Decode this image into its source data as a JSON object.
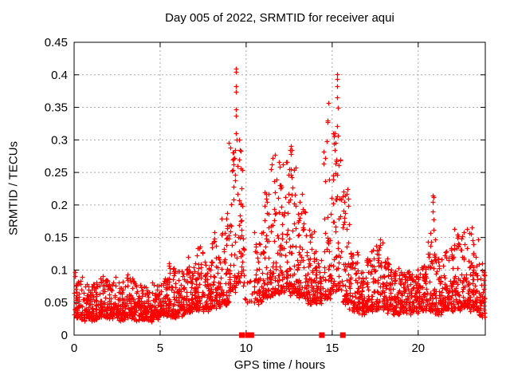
{
  "chart_data": {
    "type": "scatter",
    "title": "Day 005 of 2022, SRMTID for receiver aqui",
    "xlabel": "GPS time / hours",
    "ylabel": "SRMTID / TECUs",
    "marker": "plus",
    "marker_color": "#ff0000",
    "grid_color": "#a8a8a8",
    "axis_color": "#000000",
    "background_color": "#ffffff",
    "x_range": [
      0,
      23.9
    ],
    "y_range": [
      0,
      0.45
    ],
    "x_ticks": [
      0,
      5,
      10,
      15,
      20
    ],
    "x_tick_labels": [
      "0",
      "5",
      "10",
      "15",
      "20"
    ],
    "y_ticks": [
      0,
      0.05,
      0.1,
      0.15,
      0.2,
      0.25,
      0.3,
      0.35,
      0.4,
      0.45
    ],
    "y_tick_labels": [
      "0",
      "0.05",
      "0.1",
      "0.15",
      "0.2",
      "0.25",
      "0.3",
      "0.35",
      "0.4",
      "0.45"
    ],
    "grid": true,
    "band_profile_format": "x_start,x_end,y_min,y_max,count,tail_exponent",
    "band_profile": [
      [
        0.0,
        0.5,
        0.028,
        0.095,
        60,
        2.0
      ],
      [
        0.5,
        1.0,
        0.025,
        0.075,
        60,
        1.8
      ],
      [
        1.0,
        1.5,
        0.025,
        0.08,
        60,
        1.8
      ],
      [
        1.5,
        2.0,
        0.03,
        0.09,
        60,
        2.0
      ],
      [
        2.0,
        2.5,
        0.028,
        0.09,
        60,
        2.0
      ],
      [
        2.5,
        3.0,
        0.025,
        0.08,
        60,
        1.8
      ],
      [
        3.0,
        3.5,
        0.028,
        0.095,
        60,
        2.0
      ],
      [
        3.5,
        4.0,
        0.025,
        0.075,
        60,
        1.8
      ],
      [
        4.0,
        4.5,
        0.025,
        0.072,
        60,
        1.8
      ],
      [
        4.5,
        5.0,
        0.028,
        0.08,
        60,
        1.8
      ],
      [
        5.0,
        5.5,
        0.03,
        0.09,
        60,
        2.0
      ],
      [
        5.5,
        6.0,
        0.03,
        0.12,
        60,
        2.4
      ],
      [
        6.0,
        6.5,
        0.032,
        0.1,
        60,
        2.0
      ],
      [
        6.5,
        7.0,
        0.038,
        0.125,
        60,
        2.2
      ],
      [
        7.0,
        7.5,
        0.04,
        0.135,
        60,
        2.2
      ],
      [
        7.5,
        8.0,
        0.04,
        0.115,
        60,
        2.0
      ],
      [
        8.0,
        8.5,
        0.045,
        0.155,
        60,
        2.2
      ],
      [
        8.5,
        9.0,
        0.05,
        0.2,
        60,
        2.4
      ],
      [
        9.0,
        9.5,
        0.07,
        0.3,
        55,
        2.6
      ],
      [
        9.5,
        9.85,
        0.08,
        0.3,
        40,
        2.2
      ],
      [
        9.85,
        10.45,
        0.05,
        0.1,
        12,
        1.8
      ],
      [
        10.45,
        11.0,
        0.05,
        0.16,
        55,
        2.2
      ],
      [
        11.0,
        11.5,
        0.06,
        0.22,
        60,
        2.4
      ],
      [
        11.5,
        12.0,
        0.065,
        0.285,
        60,
        2.6
      ],
      [
        12.0,
        12.5,
        0.07,
        0.27,
        60,
        2.4
      ],
      [
        12.5,
        13.0,
        0.065,
        0.29,
        60,
        2.6
      ],
      [
        13.0,
        13.5,
        0.06,
        0.22,
        60,
        2.4
      ],
      [
        13.5,
        14.0,
        0.05,
        0.16,
        60,
        2.2
      ],
      [
        14.0,
        14.38,
        0.05,
        0.13,
        45,
        2.0
      ],
      [
        14.45,
        15.0,
        0.06,
        0.29,
        55,
        2.6
      ],
      [
        15.0,
        15.55,
        0.07,
        0.33,
        55,
        2.6
      ],
      [
        15.6,
        16.0,
        0.05,
        0.23,
        50,
        2.4
      ],
      [
        16.0,
        16.5,
        0.04,
        0.13,
        60,
        2.0
      ],
      [
        16.5,
        17.0,
        0.035,
        0.1,
        60,
        1.8
      ],
      [
        17.0,
        17.5,
        0.04,
        0.13,
        60,
        2.0
      ],
      [
        17.5,
        18.0,
        0.04,
        0.145,
        60,
        2.2
      ],
      [
        18.0,
        18.5,
        0.038,
        0.12,
        60,
        2.0
      ],
      [
        18.5,
        19.0,
        0.035,
        0.1,
        60,
        1.8
      ],
      [
        19.0,
        19.5,
        0.038,
        0.1,
        60,
        1.8
      ],
      [
        19.5,
        20.0,
        0.035,
        0.105,
        60,
        1.8
      ],
      [
        20.0,
        20.5,
        0.04,
        0.11,
        60,
        2.0
      ],
      [
        20.5,
        21.0,
        0.04,
        0.16,
        60,
        2.4
      ],
      [
        21.0,
        21.5,
        0.035,
        0.12,
        60,
        2.0
      ],
      [
        21.5,
        22.0,
        0.04,
        0.135,
        60,
        2.2
      ],
      [
        22.0,
        22.5,
        0.04,
        0.165,
        60,
        2.2
      ],
      [
        22.5,
        23.0,
        0.045,
        0.17,
        60,
        2.2
      ],
      [
        23.0,
        23.5,
        0.04,
        0.155,
        60,
        2.2
      ],
      [
        23.5,
        23.9,
        0.03,
        0.12,
        45,
        2.0
      ]
    ],
    "peak_points": [
      [
        9.38,
        0.405
      ],
      [
        9.42,
        0.41
      ],
      [
        9.4,
        0.382
      ],
      [
        9.42,
        0.374
      ],
      [
        9.38,
        0.347
      ],
      [
        9.42,
        0.337
      ],
      [
        9.4,
        0.31
      ],
      [
        9.45,
        0.3
      ],
      [
        9.35,
        0.285
      ],
      [
        9.2,
        0.27
      ],
      [
        9.25,
        0.262
      ],
      [
        9.6,
        0.3
      ],
      [
        9.62,
        0.285
      ],
      [
        9.58,
        0.27
      ],
      [
        11.55,
        0.272
      ],
      [
        11.5,
        0.262
      ],
      [
        11.45,
        0.255
      ],
      [
        12.6,
        0.29
      ],
      [
        12.65,
        0.285
      ],
      [
        12.6,
        0.278
      ],
      [
        12.62,
        0.255
      ],
      [
        14.78,
        0.357
      ],
      [
        14.72,
        0.33
      ],
      [
        14.75,
        0.327
      ],
      [
        14.7,
        0.298
      ],
      [
        15.28,
        0.401
      ],
      [
        15.3,
        0.394
      ],
      [
        15.3,
        0.382
      ],
      [
        15.3,
        0.366
      ],
      [
        15.33,
        0.35
      ],
      [
        15.3,
        0.321
      ],
      [
        15.35,
        0.307
      ],
      [
        15.2,
        0.295
      ],
      [
        15.15,
        0.285
      ],
      [
        15.9,
        0.225
      ],
      [
        15.95,
        0.21
      ],
      [
        20.85,
        0.215
      ],
      [
        20.88,
        0.212
      ],
      [
        20.86,
        0.205
      ],
      [
        20.84,
        0.19
      ],
      [
        20.9,
        0.178
      ],
      [
        20.88,
        0.162
      ],
      [
        22.1,
        0.163
      ],
      [
        22.3,
        0.155
      ],
      [
        22.85,
        0.163
      ],
      [
        23.1,
        0.166
      ]
    ],
    "zero_gap_markers_x": [
      9.75,
      10.1,
      10.3,
      14.4,
      15.62
    ],
    "seed": 20220105
  }
}
